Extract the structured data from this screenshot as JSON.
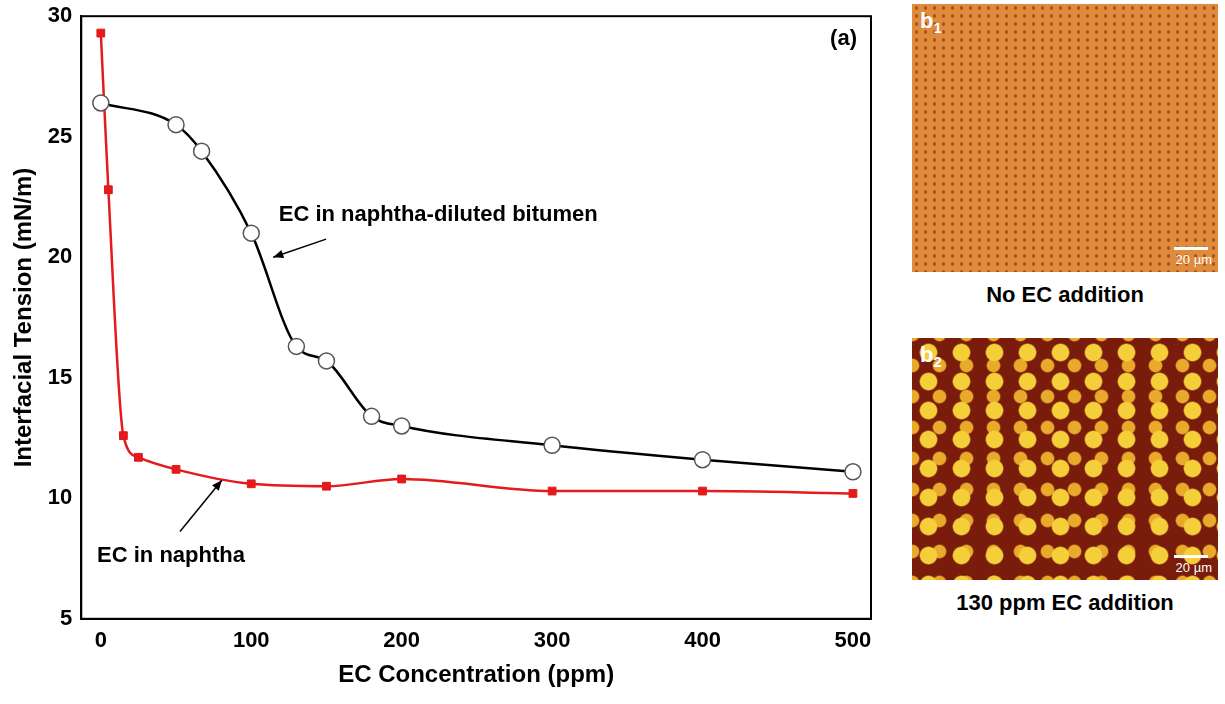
{
  "chart_data": {
    "type": "line",
    "panel_label": "(a)",
    "x_label": "EC Concentration (ppm)",
    "y_label": "Interfacial Tension (mN/m)",
    "xlim": [
      -13,
      512
    ],
    "xticks": [
      0,
      100,
      200,
      300,
      400,
      500
    ],
    "ylim": [
      5,
      30
    ],
    "yticks": [
      5,
      10,
      15,
      20,
      25,
      30
    ],
    "grid": false,
    "series": [
      {
        "name": "EC in naphtha-diluted bitumen",
        "color": "#000000",
        "marker": "circle_open",
        "line_style": "solid",
        "x": [
          0,
          50,
          67,
          100,
          130,
          150,
          180,
          200,
          300,
          400,
          500
        ],
        "values": [
          26.4,
          25.5,
          24.4,
          21.0,
          16.3,
          15.7,
          13.4,
          13.0,
          12.2,
          11.6,
          11.1
        ]
      },
      {
        "name": "EC in naphtha",
        "color": "#e41a1c",
        "marker": "square",
        "line_style": "solid",
        "x": [
          0,
          5,
          15,
          25,
          50,
          100,
          150,
          200,
          300,
          400,
          500
        ],
        "values": [
          29.3,
          22.8,
          12.6,
          11.7,
          11.2,
          10.6,
          10.5,
          10.8,
          10.3,
          10.3,
          10.2
        ]
      }
    ]
  },
  "images": [
    {
      "panel": "b1",
      "caption": "No EC addition",
      "scale_bar": "20 µm"
    },
    {
      "panel": "b2",
      "caption": "130 ppm EC addition",
      "scale_bar": "20 µm"
    }
  ]
}
